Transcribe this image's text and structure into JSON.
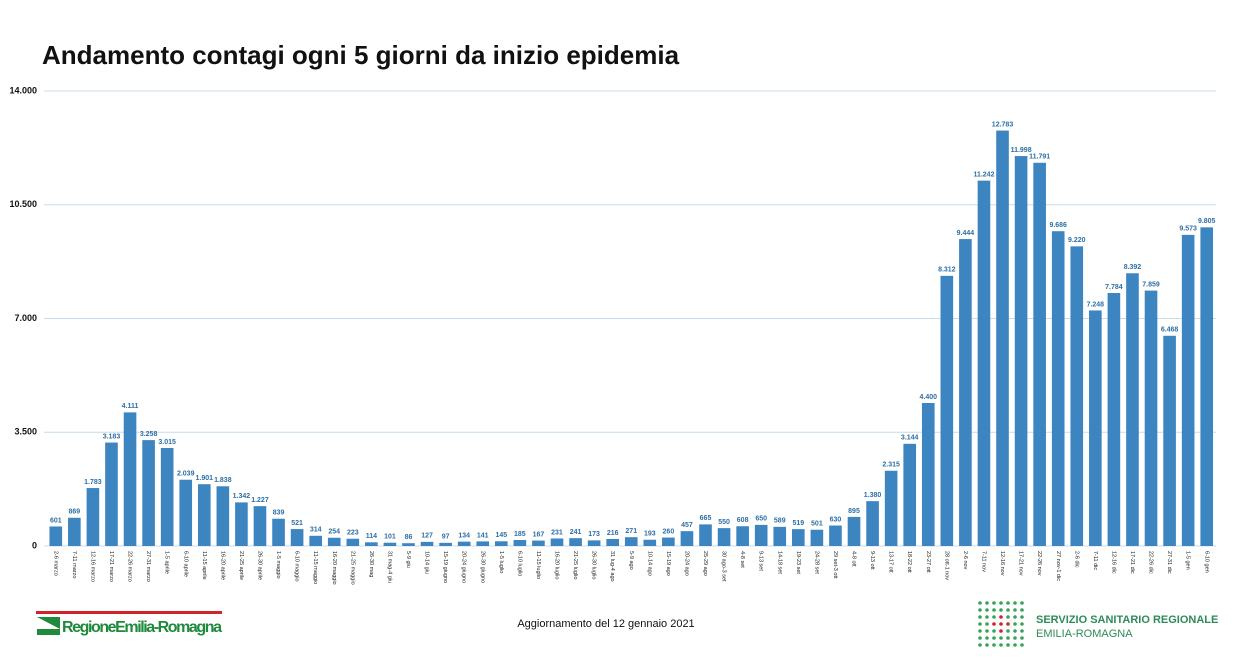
{
  "chart_data": {
    "type": "bar",
    "title": "Andamento contagi ogni 5 giorni da inizio epidemia",
    "categories": [
      "2-6 marzo",
      "7-11 marzo",
      "12-16 marzo",
      "17-21 marzo",
      "22-26 marzo",
      "27-31 marzo",
      "1-5 aprile",
      "6-10 aprile",
      "11-15 aprile",
      "16-20 aprile",
      "21-25 aprile",
      "26-30 aprile",
      "1-5 maggio",
      "6-10 maggio",
      "11-15 maggio",
      "16-20 maggio",
      "21-25 maggio",
      "26-30 mag",
      "31 mag-4 giu",
      "5-9 giu",
      "10-14 giu",
      "15-19 giugno",
      "20-24 giugno",
      "26-30 giugno",
      "1-5 luglio",
      "6-10 luglio",
      "11-15 luglio",
      "16-20 luglio",
      "21-25 luglio",
      "26-30 luglio",
      "31 lug-4 ago",
      "5-9 ago",
      "10-14 ago",
      "15-19 ago",
      "20-24 ago",
      "25-29 ago",
      "30 ago-3 set",
      "4-8 set",
      "9-13 set",
      "14-18 set",
      "19-23 set",
      "24-28 set",
      "29 set-3 ott",
      "4-8 ott",
      "9-13 ott",
      "13-17 ott",
      "18-22 ott",
      "23-27 ott",
      "28 ott-1 nov",
      "2-6 nov",
      "7-11 nov",
      "12-16 nov",
      "17-21 nov",
      "22-26 nov",
      "27 nov-1 dic",
      "2-6 dic",
      "7-11 dic",
      "12-16 dic",
      "17-21 dic",
      "22-26 dic",
      "27-31 dic",
      "1-5 gen",
      "6-10 gen"
    ],
    "values": [
      601,
      869,
      1783,
      3183,
      4111,
      3258,
      3015,
      2039,
      1901,
      1838,
      1342,
      1227,
      839,
      521,
      314,
      254,
      223,
      114,
      101,
      86,
      127,
      97,
      134,
      141,
      145,
      185,
      167,
      231,
      241,
      173,
      216,
      271,
      193,
      260,
      457,
      665,
      550,
      608,
      650,
      589,
      519,
      501,
      630,
      895,
      1380,
      2315,
      3144,
      4400,
      8312,
      9444,
      11242,
      12783,
      11998,
      11791,
      9686,
      9220,
      7248,
      7784,
      8392,
      7859,
      6468,
      9573,
      9805
    ],
    "value_labels": [
      "601",
      "869",
      "1.783",
      "3.183",
      "4.111",
      "3.258",
      "3.015",
      "2.039",
      "1.901",
      "1.838",
      "1.342",
      "1.227",
      "839",
      "521",
      "314",
      "254",
      "223",
      "114",
      "101",
      "86",
      "127",
      "97",
      "134",
      "141",
      "145",
      "185",
      "167",
      "231",
      "241",
      "173",
      "216",
      "271",
      "193",
      "260",
      "457",
      "665",
      "550",
      "608",
      "650",
      "589",
      "519",
      "501",
      "630",
      "895",
      "1.380",
      "2.315",
      "3.144",
      "4.400",
      "8.312",
      "9.444",
      "11.242",
      "12.783",
      "11.998",
      "11.791",
      "9.686",
      "9.220",
      "7.248",
      "7.784",
      "8.392",
      "7.859",
      "6.468",
      "9.573",
      "9.805"
    ],
    "color": "#3d85c1",
    "ylim": [
      0,
      14000
    ],
    "yticks": [
      0,
      {
        "value": 3500,
        "label": "3.500"
      },
      {
        "value": 7000,
        "label": "7.000"
      },
      {
        "value": 10500,
        "label": "10.500"
      },
      {
        "value": 14000,
        "label": "14.000"
      }
    ],
    "grid": true
  },
  "footer": {
    "update": "Aggiornamento del 12 gennaio 2021",
    "region_logo": "RegioneEmilia-Romagna",
    "service_line1": "SERVIZIO SANITARIO REGIONALE",
    "service_line2": "EMILIA-ROMAGNA"
  }
}
